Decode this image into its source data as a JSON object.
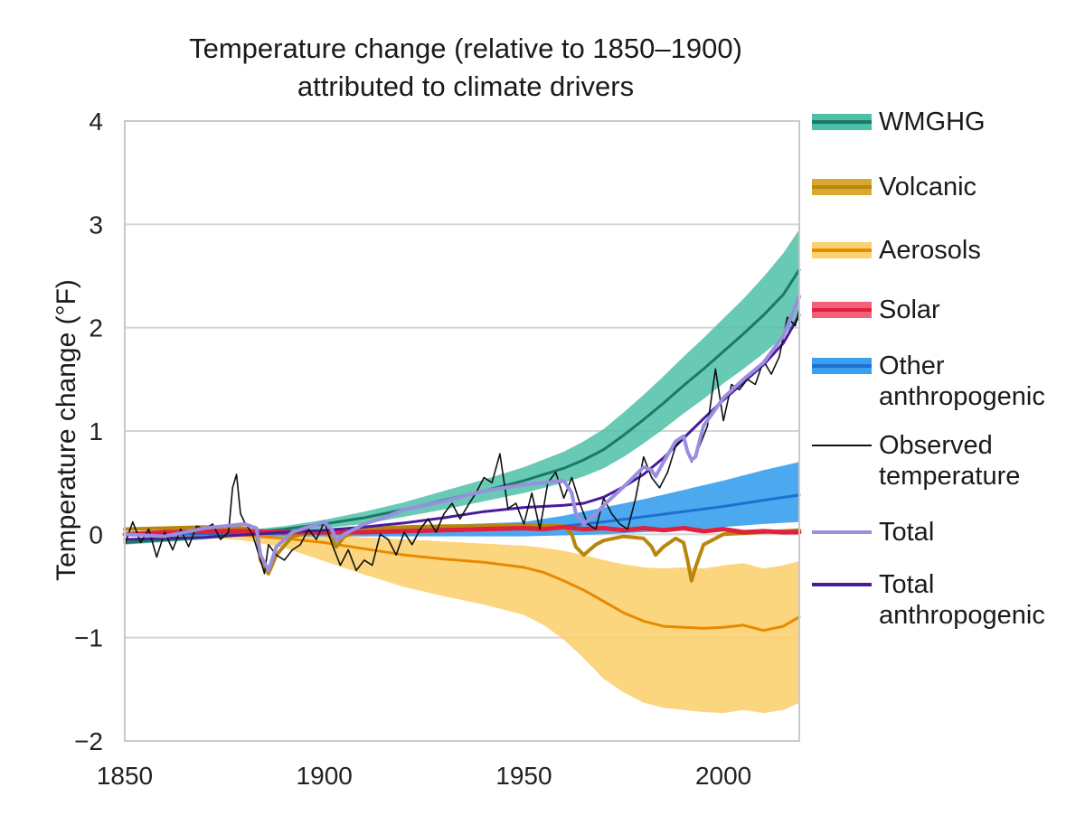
{
  "chart_data": {
    "type": "line",
    "title": [
      "Temperature change (relative to 1850–1900)",
      "attributed to climate drivers"
    ],
    "xlabel": "",
    "ylabel": "Temperature change (°F)",
    "xlim": [
      1850,
      2019
    ],
    "ylim": [
      -2,
      4
    ],
    "xticks": [
      1850,
      1900,
      1950,
      2000
    ],
    "yticks": [
      -2,
      -1,
      0,
      1,
      2,
      3,
      4
    ],
    "ytick_labels": [
      "−2",
      "−1",
      "0",
      "1",
      "2",
      "3",
      "4"
    ],
    "grid": "horizontal",
    "legend_position": "right",
    "series": [
      {
        "name": "WMGHG",
        "lines": [
          "WMGHG"
        ],
        "color": "#1b7a66",
        "band_color": "#4dbfa8",
        "x": [
          1850,
          1870,
          1890,
          1900,
          1910,
          1920,
          1930,
          1940,
          1950,
          1960,
          1965,
          1970,
          1975,
          1980,
          1985,
          1990,
          1995,
          2000,
          2005,
          2010,
          2015,
          2019
        ],
        "y": [
          -0.08,
          -0.03,
          0.05,
          0.1,
          0.16,
          0.24,
          0.33,
          0.42,
          0.52,
          0.64,
          0.72,
          0.82,
          0.96,
          1.11,
          1.27,
          1.44,
          1.6,
          1.77,
          1.94,
          2.12,
          2.32,
          2.56
        ],
        "lower": [
          -0.1,
          -0.05,
          0.02,
          0.06,
          0.1,
          0.17,
          0.24,
          0.32,
          0.4,
          0.5,
          0.56,
          0.64,
          0.75,
          0.88,
          1.02,
          1.17,
          1.31,
          1.46,
          1.6,
          1.75,
          1.91,
          2.1
        ],
        "upper": [
          -0.05,
          0.0,
          0.08,
          0.14,
          0.22,
          0.31,
          0.42,
          0.53,
          0.65,
          0.8,
          0.9,
          1.02,
          1.18,
          1.35,
          1.53,
          1.72,
          1.9,
          2.09,
          2.28,
          2.49,
          2.72,
          2.95
        ]
      },
      {
        "name": "Volcanic",
        "lines": [
          "Volcanic"
        ],
        "color": "#b8860b",
        "band_color": "#d9a830",
        "x": [
          1850,
          1860,
          1870,
          1880,
          1883,
          1884,
          1886,
          1888,
          1892,
          1900,
          1902,
          1903,
          1905,
          1910,
          1920,
          1930,
          1940,
          1950,
          1960,
          1962,
          1963,
          1965,
          1968,
          1970,
          1975,
          1980,
          1982,
          1983,
          1985,
          1988,
          1990,
          1991,
          1992,
          1993,
          1995,
          2000,
          2010,
          2019
        ],
        "y": [
          0.05,
          0.06,
          0.07,
          0.06,
          0.02,
          -0.25,
          -0.38,
          -0.2,
          -0.02,
          0.04,
          -0.05,
          -0.12,
          -0.02,
          0.05,
          0.07,
          0.08,
          0.08,
          0.09,
          0.08,
          0.0,
          -0.12,
          -0.2,
          -0.1,
          -0.06,
          -0.02,
          -0.04,
          -0.12,
          -0.2,
          -0.12,
          -0.04,
          -0.08,
          -0.25,
          -0.45,
          -0.32,
          -0.1,
          0.0,
          0.02,
          0.04
        ]
      },
      {
        "name": "Aerosols",
        "lines": [
          "Aerosols"
        ],
        "color": "#e88a00",
        "band_color": "#fbd270",
        "x": [
          1850,
          1870,
          1880,
          1890,
          1900,
          1910,
          1920,
          1930,
          1940,
          1950,
          1955,
          1960,
          1965,
          1970,
          1975,
          1980,
          1985,
          1990,
          1995,
          2000,
          2005,
          2010,
          2015,
          2019
        ],
        "y": [
          0.0,
          0.0,
          -0.01,
          -0.04,
          -0.08,
          -0.14,
          -0.2,
          -0.24,
          -0.27,
          -0.32,
          -0.37,
          -0.45,
          -0.54,
          -0.65,
          -0.76,
          -0.84,
          -0.89,
          -0.9,
          -0.91,
          -0.9,
          -0.88,
          -0.93,
          -0.89,
          -0.8
        ],
        "lower": [
          -0.02,
          -0.03,
          -0.06,
          -0.13,
          -0.26,
          -0.39,
          -0.51,
          -0.6,
          -0.68,
          -0.78,
          -0.88,
          -1.02,
          -1.2,
          -1.4,
          -1.53,
          -1.63,
          -1.68,
          -1.7,
          -1.72,
          -1.73,
          -1.7,
          -1.73,
          -1.7,
          -1.63
        ],
        "upper": [
          0.02,
          0.02,
          0.01,
          0.0,
          -0.01,
          -0.03,
          -0.05,
          -0.07,
          -0.09,
          -0.11,
          -0.13,
          -0.16,
          -0.2,
          -0.25,
          -0.29,
          -0.32,
          -0.33,
          -0.32,
          -0.33,
          -0.3,
          -0.28,
          -0.33,
          -0.3,
          -0.26
        ]
      },
      {
        "name": "Solar",
        "lines": [
          "Solar"
        ],
        "color": "#e0203c",
        "band_color": "#f2607a",
        "x": [
          1850,
          1860,
          1870,
          1880,
          1890,
          1900,
          1910,
          1920,
          1930,
          1940,
          1950,
          1955,
          1960,
          1965,
          1970,
          1975,
          1980,
          1985,
          1990,
          1995,
          2000,
          2005,
          2010,
          2015,
          2019
        ],
        "y": [
          0.0,
          0.02,
          0.03,
          0.03,
          0.02,
          0.02,
          0.02,
          0.03,
          0.04,
          0.05,
          0.06,
          0.05,
          0.07,
          0.05,
          0.06,
          0.04,
          0.06,
          0.04,
          0.06,
          0.03,
          0.05,
          0.02,
          0.03,
          0.02,
          0.02
        ]
      },
      {
        "name": "Other anthropogenic",
        "lines": [
          "Other",
          "anthropogenic"
        ],
        "color": "#1f6fd0",
        "band_color": "#38a0ee",
        "x": [
          1850,
          1900,
          1950,
          1960,
          1970,
          1980,
          1990,
          2000,
          2010,
          2019
        ],
        "y": [
          0.0,
          0.01,
          0.05,
          0.08,
          0.12,
          0.17,
          0.22,
          0.27,
          0.33,
          0.38
        ],
        "lower": [
          -0.02,
          -0.02,
          -0.02,
          -0.01,
          0.0,
          0.02,
          0.04,
          0.07,
          0.1,
          0.12
        ],
        "upper": [
          0.02,
          0.05,
          0.12,
          0.18,
          0.26,
          0.34,
          0.43,
          0.52,
          0.62,
          0.7
        ]
      },
      {
        "name": "Observed temperature",
        "lines": [
          "Observed",
          "temperature"
        ],
        "color": "#111111",
        "x": [
          1850,
          1852,
          1854,
          1856,
          1858,
          1860,
          1862,
          1864,
          1866,
          1868,
          1870,
          1872,
          1874,
          1876,
          1877,
          1878,
          1879,
          1880,
          1882,
          1884,
          1885,
          1886,
          1888,
          1890,
          1892,
          1894,
          1896,
          1898,
          1900,
          1902,
          1904,
          1906,
          1908,
          1910,
          1912,
          1914,
          1916,
          1918,
          1920,
          1922,
          1924,
          1926,
          1928,
          1930,
          1932,
          1934,
          1936,
          1938,
          1940,
          1942,
          1944,
          1946,
          1948,
          1950,
          1952,
          1954,
          1956,
          1958,
          1960,
          1962,
          1964,
          1966,
          1968,
          1970,
          1972,
          1974,
          1976,
          1978,
          1980,
          1982,
          1984,
          1986,
          1988,
          1990,
          1992,
          1994,
          1996,
          1998,
          2000,
          2002,
          2004,
          2006,
          2008,
          2010,
          2012,
          2014,
          2016,
          2018,
          2019
        ],
        "y": [
          -0.1,
          0.12,
          -0.08,
          0.05,
          -0.22,
          0.02,
          -0.15,
          0.05,
          -0.12,
          0.08,
          0.05,
          0.1,
          -0.05,
          0.02,
          0.45,
          0.58,
          0.2,
          0.12,
          0.0,
          -0.25,
          -0.38,
          -0.1,
          -0.2,
          -0.25,
          -0.15,
          -0.1,
          0.05,
          -0.05,
          0.12,
          -0.1,
          -0.3,
          -0.15,
          -0.35,
          -0.25,
          -0.3,
          0.0,
          -0.05,
          -0.2,
          0.02,
          -0.1,
          0.05,
          0.15,
          0.02,
          0.2,
          0.3,
          0.15,
          0.28,
          0.4,
          0.55,
          0.5,
          0.78,
          0.25,
          0.3,
          0.1,
          0.4,
          0.05,
          0.5,
          0.6,
          0.35,
          0.55,
          0.3,
          0.1,
          0.05,
          0.35,
          0.2,
          0.1,
          0.05,
          0.35,
          0.75,
          0.55,
          0.45,
          0.6,
          0.85,
          0.95,
          0.7,
          0.85,
          1.05,
          1.6,
          1.1,
          1.45,
          1.4,
          1.5,
          1.45,
          1.68,
          1.55,
          1.72,
          2.1,
          2.02,
          2.18
        ]
      },
      {
        "name": "Total",
        "lines": [
          "Total"
        ],
        "color": "#9a8ee0",
        "x": [
          1850,
          1860,
          1870,
          1875,
          1880,
          1883,
          1884,
          1886,
          1888,
          1892,
          1900,
          1902,
          1903,
          1905,
          1910,
          1915,
          1920,
          1930,
          1940,
          1950,
          1955,
          1960,
          1962,
          1963,
          1965,
          1968,
          1970,
          1975,
          1980,
          1982,
          1983,
          1985,
          1988,
          1990,
          1991,
          1992,
          1993,
          1995,
          2000,
          2005,
          2010,
          2015,
          2019
        ],
        "y": [
          0.0,
          -0.02,
          0.06,
          0.08,
          0.1,
          0.06,
          -0.2,
          -0.35,
          -0.12,
          0.02,
          0.12,
          0.04,
          -0.06,
          0.0,
          0.1,
          0.16,
          0.24,
          0.32,
          0.42,
          0.48,
          0.5,
          0.52,
          0.4,
          0.2,
          0.1,
          0.2,
          0.28,
          0.46,
          0.65,
          0.62,
          0.56,
          0.7,
          0.9,
          0.95,
          0.8,
          0.72,
          0.75,
          1.05,
          1.32,
          1.5,
          1.66,
          1.92,
          2.3
        ]
      },
      {
        "name": "Total anthropogenic",
        "lines": [
          "Total",
          "anthropogenic"
        ],
        "color": "#4b1a9c",
        "x": [
          1850,
          1870,
          1890,
          1900,
          1910,
          1920,
          1930,
          1940,
          1950,
          1960,
          1965,
          1970,
          1975,
          1980,
          1985,
          1990,
          1995,
          2000,
          2005,
          2010,
          2015,
          2019
        ],
        "y": [
          -0.05,
          -0.03,
          0.02,
          0.04,
          0.07,
          0.11,
          0.16,
          0.22,
          0.26,
          0.28,
          0.3,
          0.36,
          0.46,
          0.58,
          0.74,
          0.93,
          1.12,
          1.3,
          1.47,
          1.64,
          1.85,
          2.12
        ]
      }
    ]
  }
}
